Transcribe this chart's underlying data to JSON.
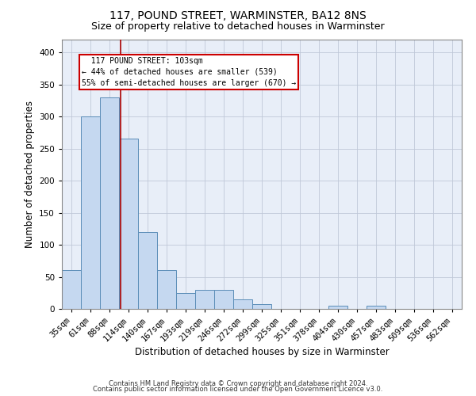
{
  "title1": "117, POUND STREET, WARMINSTER, BA12 8NS",
  "title2": "Size of property relative to detached houses in Warminster",
  "xlabel": "Distribution of detached houses by size in Warminster",
  "ylabel": "Number of detached properties",
  "footer1": "Contains HM Land Registry data © Crown copyright and database right 2024.",
  "footer2": "Contains public sector information licensed under the Open Government Licence v3.0.",
  "bin_labels": [
    "35sqm",
    "61sqm",
    "88sqm",
    "114sqm",
    "140sqm",
    "167sqm",
    "193sqm",
    "219sqm",
    "246sqm",
    "272sqm",
    "299sqm",
    "325sqm",
    "351sqm",
    "378sqm",
    "404sqm",
    "430sqm",
    "457sqm",
    "483sqm",
    "509sqm",
    "536sqm",
    "562sqm"
  ],
  "bar_values": [
    60,
    300,
    330,
    265,
    120,
    60,
    25,
    30,
    30,
    15,
    8,
    0,
    0,
    0,
    5,
    0,
    5,
    0,
    0,
    0,
    0
  ],
  "bar_color": "#c5d8f0",
  "bar_edge_color": "#5b8db8",
  "red_line_color": "#aa0000",
  "annotation_text_line1": "  117 POUND STREET: 103sqm",
  "annotation_text_line2": "← 44% of detached houses are smaller (539)",
  "annotation_text_line3": "55% of semi-detached houses are larger (670) →",
  "annotation_box_color": "#cc0000",
  "ylim": [
    0,
    420
  ],
  "yticks": [
    0,
    50,
    100,
    150,
    200,
    250,
    300,
    350,
    400
  ],
  "grid_color": "#c0c8d8",
  "bg_color": "#e8eef8",
  "title_fontsize": 10,
  "subtitle_fontsize": 9,
  "tick_fontsize": 7.5,
  "label_fontsize": 8.5,
  "footer_fontsize": 6
}
